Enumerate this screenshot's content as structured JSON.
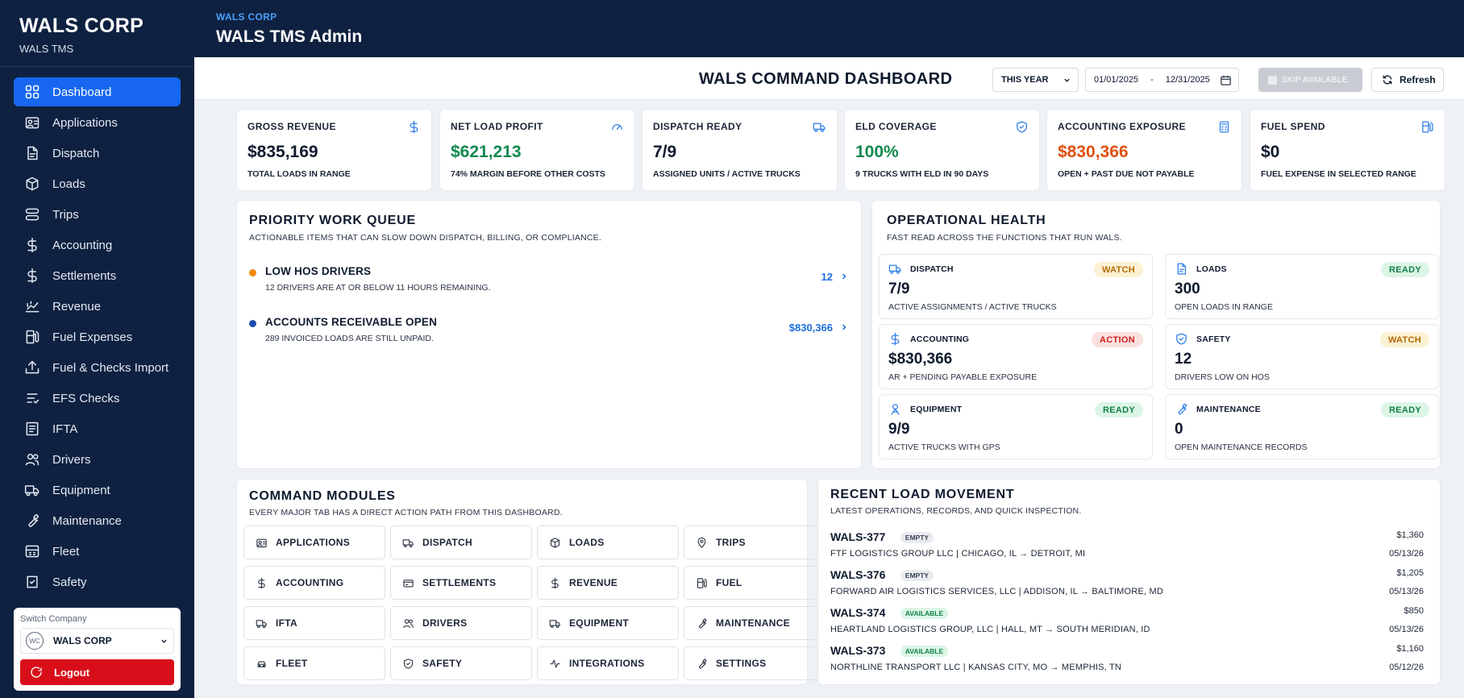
{
  "sidebar": {
    "brand_title": "WALS CORP",
    "brand_sub": "WALS TMS",
    "items": [
      {
        "label": "Dashboard",
        "icon": "grid-icon",
        "active": true
      },
      {
        "label": "Applications",
        "icon": "id-card-icon"
      },
      {
        "label": "Dispatch",
        "icon": "document-icon"
      },
      {
        "label": "Loads",
        "icon": "box-icon"
      },
      {
        "label": "Trips",
        "icon": "route-icon"
      },
      {
        "label": "Accounting",
        "icon": "dollar-icon"
      },
      {
        "label": "Settlements",
        "icon": "dollar-icon"
      },
      {
        "label": "Revenue",
        "icon": "revenue-icon"
      },
      {
        "label": "Fuel Expenses",
        "icon": "fuel-icon"
      },
      {
        "label": "Fuel & Checks Import",
        "icon": "upload-icon"
      },
      {
        "label": "EFS Checks",
        "icon": "check-icon"
      },
      {
        "label": "IFTA",
        "icon": "report-icon"
      },
      {
        "label": "Drivers",
        "icon": "users-icon"
      },
      {
        "label": "Equipment",
        "icon": "truck-icon"
      },
      {
        "label": "Maintenance",
        "icon": "wrench-icon"
      },
      {
        "label": "Fleet",
        "icon": "fleet-icon"
      },
      {
        "label": "Safety",
        "icon": "safety-icon"
      }
    ],
    "switch_label": "Switch Company",
    "company_logo": "WC",
    "company_name": "WALS CORP",
    "logout_label": "Logout"
  },
  "header": {
    "sub": "WALS CORP",
    "title": "WALS TMS Admin"
  },
  "toolbar": {
    "title": "WALS COMMAND DASHBOARD",
    "range": "THIS YEAR",
    "date_from": "01/01/2025",
    "date_sep": "-",
    "date_to": "12/31/2025",
    "skip_label": "SKIP AVAILABLE",
    "refresh_label": "Refresh"
  },
  "kpis": [
    {
      "label": "GROSS REVENUE",
      "value": "$835,169",
      "desc": "TOTAL LOADS IN RANGE",
      "icon": "dollar-icon"
    },
    {
      "label": "NET LOAD PROFIT",
      "value": "$621,213",
      "desc": "74% MARGIN BEFORE OTHER COSTS",
      "icon": "gauge-icon"
    },
    {
      "label": "DISPATCH READY",
      "value": "7/9",
      "desc": "ASSIGNED UNITS / ACTIVE TRUCKS",
      "icon": "truck-icon"
    },
    {
      "label": "ELD COVERAGE",
      "value": "100%",
      "desc": "9 TRUCKS WITH ELD IN 90 DAYS",
      "icon": "shield-icon"
    },
    {
      "label": "ACCOUNTING EXPOSURE",
      "value": "$830,366",
      "desc": "OPEN + PAST DUE NOT PAYABLE",
      "icon": "calculator-icon"
    },
    {
      "label": "FUEL SPEND",
      "value": "$0",
      "desc": "FUEL EXPENSE IN SELECTED RANGE",
      "icon": "fuel-icon"
    }
  ],
  "priority": {
    "title": "PRIORITY WORK QUEUE",
    "sub": "ACTIONABLE ITEMS THAT CAN SLOW DOWN DISPATCH, BILLING, OR COMPLIANCE.",
    "items": [
      {
        "title": "LOW HOS DRIVERS",
        "desc": "12 DRIVERS ARE AT OR BELOW 11 HOURS REMAINING.",
        "value": "12",
        "color": "#f08a10"
      },
      {
        "title": "ACCOUNTS RECEIVABLE OPEN",
        "desc": "289 INVOICED LOADS ARE STILL UNPAID.",
        "value": "$830,366",
        "color": "#1c4fb0"
      }
    ]
  },
  "health": {
    "title": "OPERATIONAL HEALTH",
    "sub": "FAST READ ACROSS THE FUNCTIONS THAT RUN WALS.",
    "cards": [
      {
        "label": "DISPATCH",
        "value": "7/9",
        "desc": "ACTIVE ASSIGNMENTS / ACTIVE TRUCKS",
        "status": "WATCH",
        "icon": "truck-icon"
      },
      {
        "label": "LOADS",
        "value": "300",
        "desc": "OPEN LOADS IN RANGE",
        "status": "READY",
        "icon": "document-icon"
      },
      {
        "label": "ACCOUNTING",
        "value": "$830,366",
        "desc": "AR + PENDING PAYABLE EXPOSURE",
        "status": "ACTION",
        "icon": "dollar-icon"
      },
      {
        "label": "SAFETY",
        "value": "12",
        "desc": "DRIVERS LOW ON HOS",
        "status": "WATCH",
        "icon": "shield-icon"
      },
      {
        "label": "EQUIPMENT",
        "value": "9/9",
        "desc": "ACTIVE TRUCKS WITH GPS",
        "status": "READY",
        "icon": "gps-icon"
      },
      {
        "label": "MAINTENANCE",
        "value": "0",
        "desc": "OPEN MAINTENANCE RECORDS",
        "status": "READY",
        "icon": "wrench-icon"
      }
    ]
  },
  "modules": {
    "title": "COMMAND MODULES",
    "sub": "EVERY MAJOR TAB HAS A DIRECT ACTION PATH FROM THIS DASHBOARD.",
    "items": [
      {
        "label": "APPLICATIONS",
        "icon": "id-card-icon"
      },
      {
        "label": "DISPATCH",
        "icon": "truck-icon"
      },
      {
        "label": "LOADS",
        "icon": "box-icon"
      },
      {
        "label": "TRIPS",
        "icon": "pin-icon"
      },
      {
        "label": "ACCOUNTING",
        "icon": "dollar-icon"
      },
      {
        "label": "SETTLEMENTS",
        "icon": "card-icon"
      },
      {
        "label": "REVENUE",
        "icon": "dollar-icon"
      },
      {
        "label": "FUEL",
        "icon": "fuel-icon"
      },
      {
        "label": "IFTA",
        "icon": "truck-icon"
      },
      {
        "label": "DRIVERS",
        "icon": "users-icon"
      },
      {
        "label": "EQUIPMENT",
        "icon": "truck-icon"
      },
      {
        "label": "MAINTENANCE",
        "icon": "wrench-icon"
      },
      {
        "label": "FLEET",
        "icon": "car-icon"
      },
      {
        "label": "SAFETY",
        "icon": "shield-icon"
      },
      {
        "label": "INTEGRATIONS",
        "icon": "activity-icon"
      },
      {
        "label": "SETTINGS",
        "icon": "wrench-icon"
      }
    ]
  },
  "loads": {
    "title": "RECENT LOAD MOVEMENT",
    "sub": "LATEST OPERATIONS, RECORDS, AND QUICK INSPECTION.",
    "items": [
      {
        "id": "WALS-377",
        "status": "EMPTY",
        "route": "FTF LOGISTICS GROUP LLC | CHICAGO, IL → DETROIT, MI",
        "amount": "$1,360",
        "date": "05/13/26"
      },
      {
        "id": "WALS-376",
        "status": "EMPTY",
        "route": "FORWARD AIR LOGISTICS SERVICES, LLC | ADDISON, IL → BALTIMORE, MD",
        "amount": "$1,205",
        "date": "05/13/26"
      },
      {
        "id": "WALS-374",
        "status": "AVAILABLE",
        "route": "HEARTLAND LOGISTICS GROUP, LLC | HALL, MT → SOUTH MERIDIAN, ID",
        "amount": "$850",
        "date": "05/13/26"
      },
      {
        "id": "WALS-373",
        "status": "AVAILABLE",
        "route": "NORTHLINE TRANSPORT LLC | KANSAS CITY, MO → MEMPHIS, TN",
        "amount": "$1,160",
        "date": "05/12/26"
      }
    ]
  }
}
